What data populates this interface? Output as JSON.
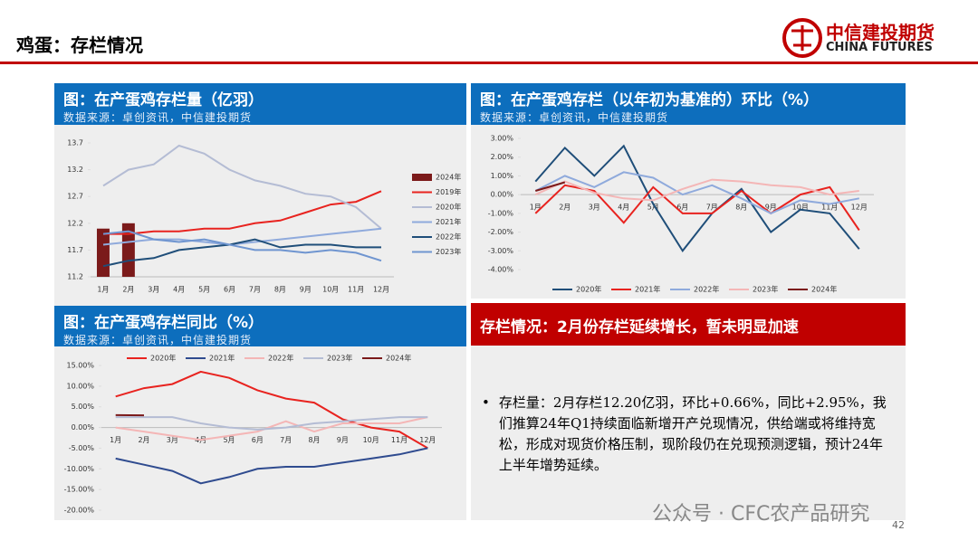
{
  "header": {
    "title": "鸡蛋：存栏情况",
    "logo_cn": "中信建投期货",
    "logo_en": "CHINA FUTURES"
  },
  "chart_data": [
    {
      "type": "line",
      "title": "图：在产蛋鸡存栏量（亿羽）",
      "subtitle": "数据来源：卓创资讯，中信建投期货",
      "categories": [
        "1月",
        "2月",
        "3月",
        "4月",
        "5月",
        "6月",
        "7月",
        "8月",
        "9月",
        "10月",
        "11月",
        "12月"
      ],
      "series": [
        {
          "name": "2024年",
          "type": "bar",
          "color": "#7b1a1a",
          "values": [
            12.1,
            12.2,
            null,
            null,
            null,
            null,
            null,
            null,
            null,
            null,
            null,
            null
          ]
        },
        {
          "name": "2019年",
          "color": "#e8231f",
          "values": [
            12.0,
            12.0,
            12.05,
            12.05,
            12.1,
            12.1,
            12.2,
            12.25,
            12.4,
            12.55,
            12.6,
            12.8
          ]
        },
        {
          "name": "2020年",
          "color": "#b4bcd4",
          "values": [
            12.9,
            13.2,
            13.3,
            13.65,
            13.5,
            13.2,
            13.0,
            12.9,
            12.75,
            12.7,
            12.5,
            12.1
          ]
        },
        {
          "name": "2021年",
          "color": "#8faadc",
          "values": [
            11.8,
            11.85,
            11.9,
            11.9,
            11.85,
            11.8,
            11.85,
            11.9,
            11.95,
            12.0,
            12.05,
            12.1
          ]
        },
        {
          "name": "2022年",
          "color": "#1f4e79",
          "values": [
            11.4,
            11.5,
            11.55,
            11.7,
            11.75,
            11.8,
            11.9,
            11.75,
            11.8,
            11.8,
            11.75,
            11.75
          ]
        },
        {
          "name": "2023年",
          "color": "#6f95d0",
          "values": [
            12.0,
            12.05,
            11.9,
            11.85,
            11.9,
            11.8,
            11.7,
            11.7,
            11.65,
            11.7,
            11.65,
            11.5
          ]
        }
      ],
      "ylim": [
        11.2,
        13.7
      ],
      "yticks": [
        11.2,
        11.7,
        12.2,
        12.7,
        13.2,
        13.7
      ],
      "legend": "right"
    },
    {
      "type": "line",
      "title": "图：在产蛋鸡存栏（以年初为基准的）环比（%）",
      "subtitle": "数据来源：卓创资讯，中信建投期货",
      "categories": [
        "1月",
        "2月",
        "3月",
        "4月",
        "5月",
        "6月",
        "7月",
        "8月",
        "9月",
        "10月",
        "11月",
        "12月"
      ],
      "series": [
        {
          "name": "2020年",
          "color": "#1f4e79",
          "values": [
            0.7,
            2.5,
            1.0,
            2.6,
            -0.5,
            -3.0,
            -1.0,
            0.3,
            -2.0,
            -0.8,
            -1.0,
            -2.9
          ]
        },
        {
          "name": "2021年",
          "color": "#e8231f",
          "values": [
            -1.0,
            0.5,
            0.2,
            -1.5,
            0.4,
            -1.0,
            -1.0,
            0.2,
            -1.0,
            0.0,
            0.4,
            -1.9
          ]
        },
        {
          "name": "2022年",
          "color": "#8faadc",
          "values": [
            0.2,
            1.0,
            0.4,
            1.2,
            0.9,
            0.0,
            0.5,
            -0.2,
            -1.0,
            -0.3,
            -0.5,
            -0.2
          ]
        },
        {
          "name": "2023年",
          "color": "#f4b6b6",
          "values": [
            0.0,
            0.7,
            0.1,
            -0.2,
            -0.3,
            0.3,
            0.8,
            0.7,
            0.5,
            0.4,
            0.0,
            0.2
          ]
        },
        {
          "name": "2024年",
          "color": "#7b1a1a",
          "values": [
            0.2,
            0.66,
            null,
            null,
            null,
            null,
            null,
            null,
            null,
            null,
            null,
            null
          ]
        }
      ],
      "ylim": [
        -4,
        3
      ],
      "yticks": [
        {
          "value": -4,
          "label": "-4.00%"
        },
        {
          "value": -3,
          "label": "-3.00%"
        },
        {
          "value": -2,
          "label": "-2.00%"
        },
        {
          "value": -1,
          "label": "-1.00%"
        },
        {
          "value": 0,
          "label": "0.00%"
        },
        {
          "value": 1,
          "label": "1.00%"
        },
        {
          "value": 2,
          "label": "2.00%"
        },
        {
          "value": 3,
          "label": "3.00%"
        }
      ],
      "legend": "bottom"
    },
    {
      "type": "line",
      "title": "图：在产蛋鸡存栏同比（%）",
      "subtitle": "数据来源：卓创资讯，中信建投期货",
      "categories": [
        "1月",
        "2月",
        "3月",
        "4月",
        "5月",
        "6月",
        "7月",
        "8月",
        "9月",
        "10月",
        "11月",
        "12月"
      ],
      "series": [
        {
          "name": "2020年",
          "color": "#e8231f",
          "values": [
            7.5,
            9.5,
            10.5,
            13.5,
            12,
            9,
            7,
            6,
            2,
            0,
            -1,
            -5
          ]
        },
        {
          "name": "2021年",
          "color": "#2f4b8f",
          "values": [
            -7.5,
            -9,
            -10.5,
            -13.5,
            -12,
            -10,
            -9.5,
            -9.5,
            -8.5,
            -7.5,
            -6.5,
            -5
          ]
        },
        {
          "name": "2022年",
          "color": "#f4b6b6",
          "values": [
            0,
            -1,
            -2,
            -3,
            -2,
            -1,
            1.5,
            -1,
            1,
            1,
            1,
            2.5
          ]
        },
        {
          "name": "2023年",
          "color": "#b4bcd4",
          "values": [
            2.5,
            2.5,
            2.5,
            1,
            0,
            -0.5,
            0,
            1,
            1.5,
            2,
            2.5,
            2.5
          ]
        },
        {
          "name": "2024年",
          "color": "#7b1a1a",
          "values": [
            3,
            2.95,
            null,
            null,
            null,
            null,
            null,
            null,
            null,
            null,
            null,
            null
          ]
        }
      ],
      "ylim": [
        -20,
        15
      ],
      "yticks": [
        {
          "value": -20,
          "label": "-20.00%"
        },
        {
          "value": -15,
          "label": "-15.00%"
        },
        {
          "value": -10,
          "label": "-10.00%"
        },
        {
          "value": -5,
          "label": "-5.00%"
        },
        {
          "value": 0,
          "label": "0.00%"
        },
        {
          "value": 5,
          "label": "5.00%"
        },
        {
          "value": 10,
          "label": "10.00%"
        },
        {
          "value": 15,
          "label": "15.00%"
        }
      ],
      "legend": "top"
    }
  ],
  "textbox": {
    "title": "存栏情况：2月份存栏延续增长，暂未明显加速",
    "body": "存栏量：2月存栏12.20亿羽，环比+0.66%，同比+2.95%，我们推算24年Q1持续面临新增开产兑现情况，供给端或将维持宽松，形成对现货价格压制，现阶段仍在兑现预测逻辑，预计24年上半年增势延续。"
  },
  "watermark": "公众号 · CFC农产品研究",
  "page_number": "42"
}
